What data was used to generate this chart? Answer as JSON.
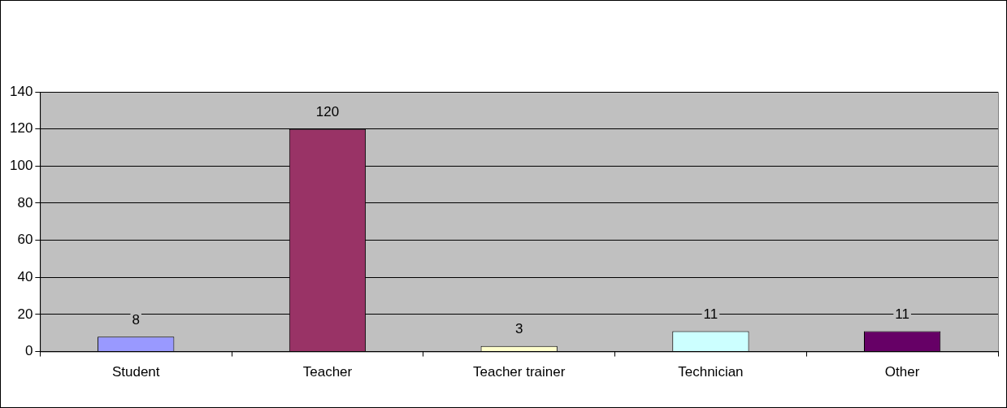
{
  "chart_data": {
    "type": "bar",
    "categories": [
      "Student",
      "Teacher",
      "Teacher trainer",
      "Technician",
      "Other"
    ],
    "values": [
      8,
      120,
      3,
      11,
      11
    ],
    "colors": [
      "#9999ff",
      "#993366",
      "#ffffcc",
      "#ccffff",
      "#660066"
    ],
    "ylim": [
      0,
      140
    ],
    "yticks": [
      0,
      20,
      40,
      60,
      80,
      100,
      120,
      140
    ],
    "grid": "y",
    "data_labels": true,
    "legend": false
  }
}
